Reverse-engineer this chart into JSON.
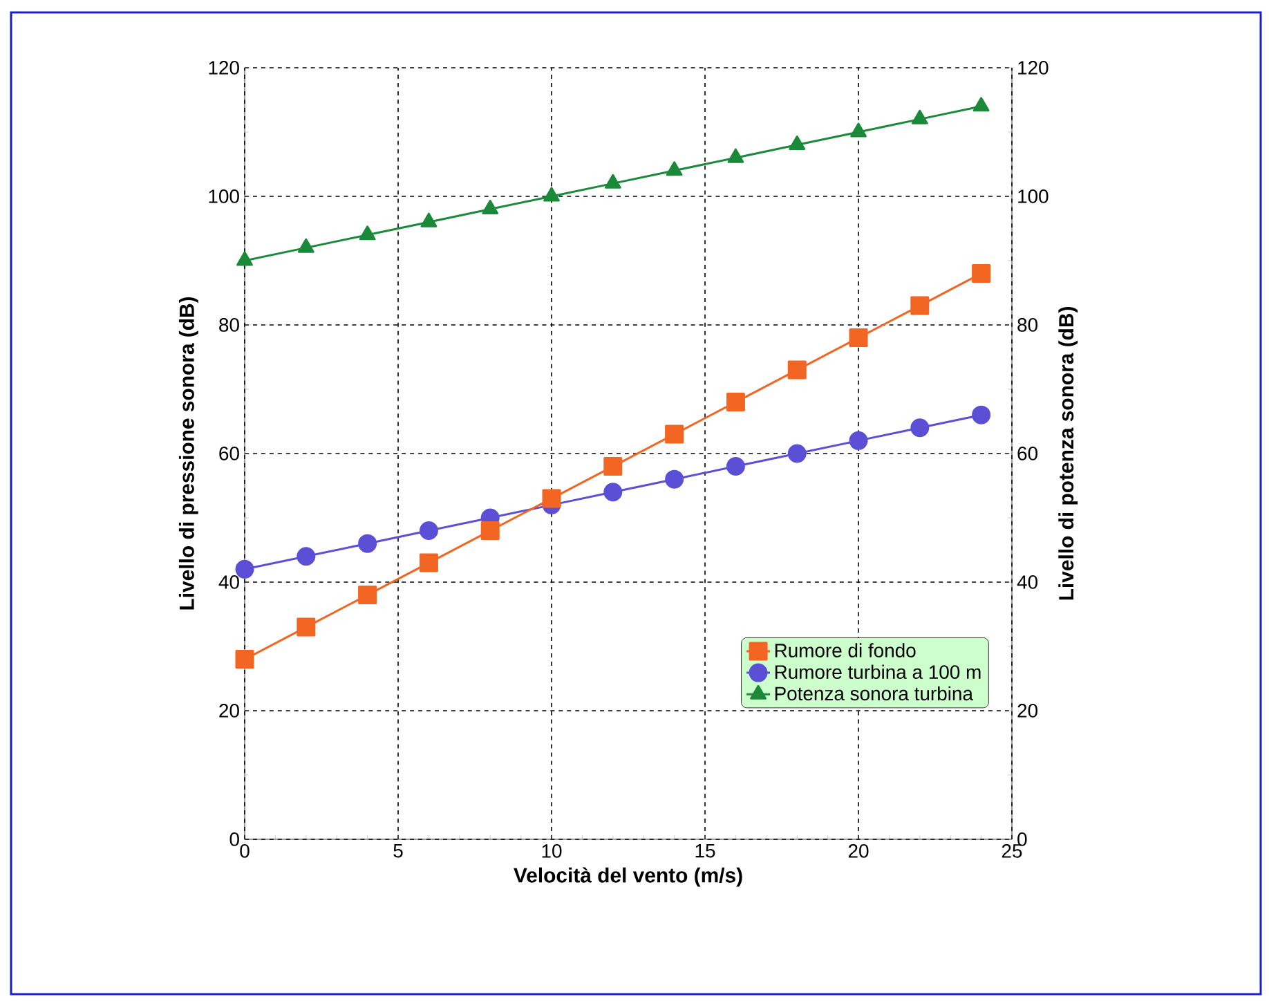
{
  "chart_data": {
    "type": "line",
    "xlabel": "Velocità del vento (m/s)",
    "ylabel": "Livello di pressione sonora (dB)",
    "y2label": "Livello di potenza sonora (dB)",
    "x": [
      0,
      2,
      4,
      6,
      8,
      10,
      12,
      14,
      16,
      18,
      20,
      22,
      24
    ],
    "series": [
      {
        "name": "Rumore di fondo",
        "color": "#f26522",
        "marker": "square",
        "values": [
          28,
          33,
          38,
          43,
          48,
          53,
          58,
          63,
          68,
          73,
          78,
          83,
          88
        ]
      },
      {
        "name": "Rumore turbina a 100 m",
        "color": "#5b4fd6",
        "marker": "circle",
        "values": [
          42,
          44,
          46,
          48,
          50,
          52,
          54,
          56,
          58,
          60,
          62,
          64,
          66
        ]
      },
      {
        "name": "Potenza sonora turbina",
        "color": "#1a8a3a",
        "marker": "triangle",
        "values": [
          90,
          92,
          94,
          96,
          98,
          100,
          102,
          104,
          106,
          108,
          110,
          112,
          114
        ]
      }
    ],
    "xlim": [
      0,
      25
    ],
    "xticks": [
      0,
      5,
      10,
      15,
      20,
      25
    ],
    "ylim": [
      0,
      120
    ],
    "yticks": [
      0,
      20,
      40,
      60,
      80,
      100,
      120
    ],
    "y2lim": [
      0,
      120
    ],
    "y2ticks": [
      0,
      20,
      40,
      60,
      80,
      100,
      120
    ],
    "grid": true,
    "legend": "bottom right",
    "line_style": "solid"
  }
}
